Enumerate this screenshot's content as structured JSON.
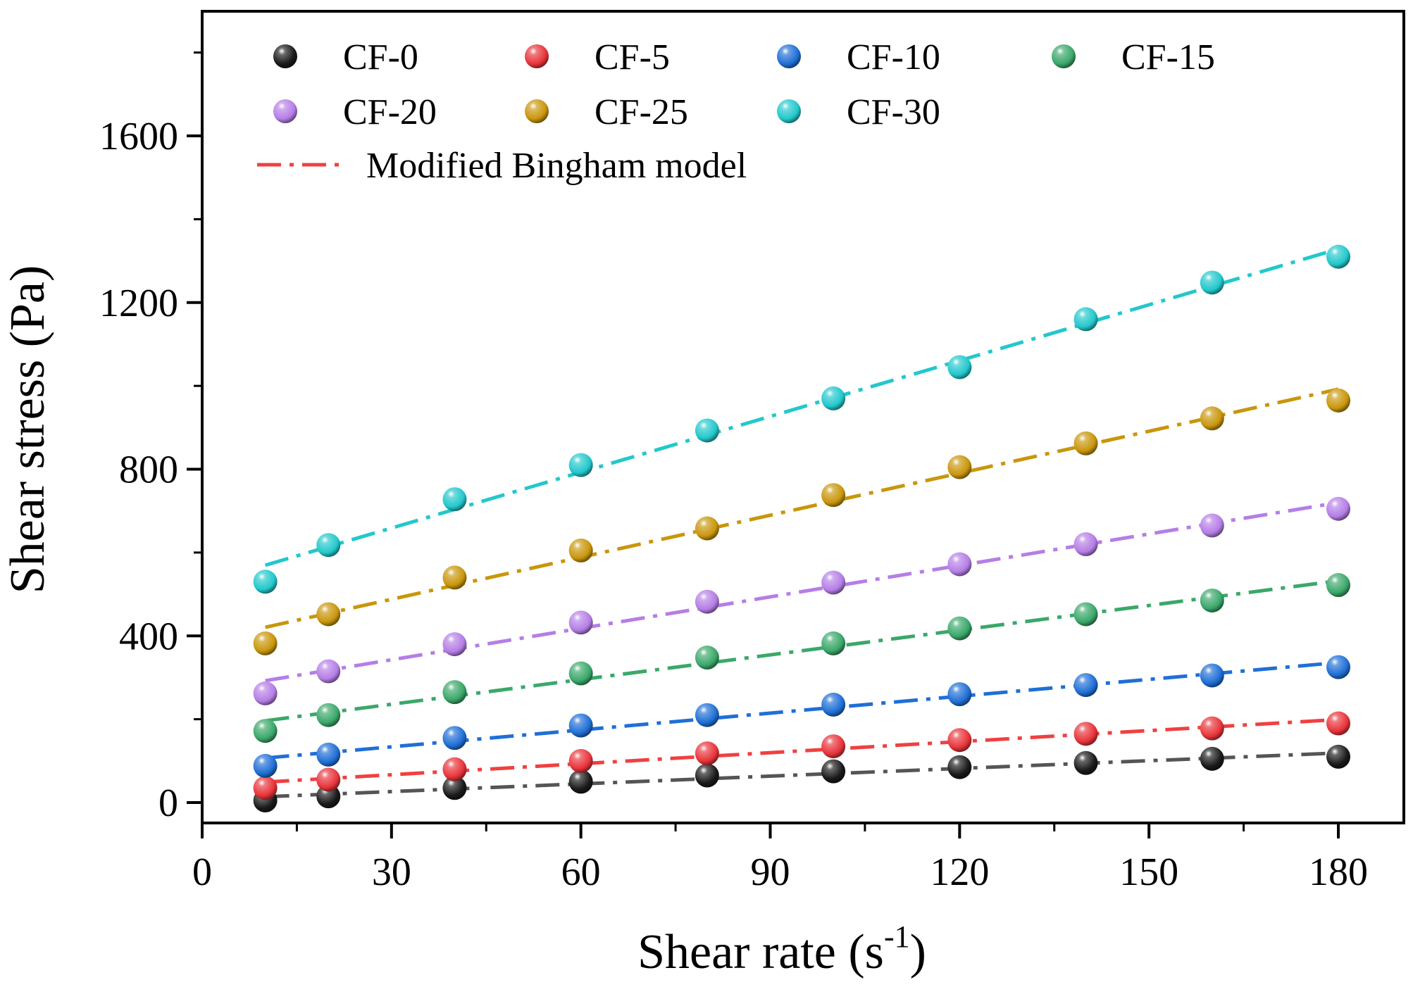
{
  "chart_data": {
    "type": "scatter",
    "xlabel": "Shear rate (s",
    "xlabel_sup": "-1",
    "xlabel_close": ")",
    "ylabel": "Shear stress (Pa)",
    "xlim": [
      0,
      190
    ],
    "ylim": [
      -50,
      1900
    ],
    "xticks": [
      0,
      30,
      60,
      90,
      120,
      150,
      180
    ],
    "yticks": [
      0,
      400,
      800,
      1200,
      1600
    ],
    "x": [
      10,
      20,
      40,
      60,
      80,
      100,
      120,
      140,
      160,
      180
    ],
    "series": [
      {
        "name": "CF-0",
        "color": "#1a1a1a",
        "line_color": "#555555",
        "values": [
          5,
          15,
          35,
          50,
          65,
          75,
          85,
          95,
          105,
          110
        ]
      },
      {
        "name": "CF-5",
        "color": "#e8343a",
        "line_color": "#f04040",
        "values": [
          35,
          55,
          80,
          100,
          118,
          135,
          150,
          165,
          178,
          190
        ]
      },
      {
        "name": "CF-10",
        "color": "#1f6fd6",
        "line_color": "#1f6fd6",
        "values": [
          88,
          115,
          155,
          185,
          210,
          235,
          260,
          282,
          305,
          325
        ]
      },
      {
        "name": "CF-15",
        "color": "#3aa86a",
        "line_color": "#3aa86a",
        "values": [
          172,
          210,
          265,
          310,
          348,
          382,
          418,
          452,
          485,
          522
        ]
      },
      {
        "name": "CF-20",
        "color": "#b57ee6",
        "line_color": "#b57ee6",
        "values": [
          262,
          315,
          380,
          432,
          482,
          528,
          572,
          620,
          665,
          705
        ]
      },
      {
        "name": "CF-25",
        "color": "#c9960c",
        "line_color": "#c9960c",
        "values": [
          382,
          452,
          540,
          605,
          658,
          738,
          805,
          862,
          922,
          965
        ]
      },
      {
        "name": "CF-30",
        "color": "#22c8cc",
        "line_color": "#22c8cc",
        "values": [
          530,
          618,
          728,
          810,
          893,
          970,
          1045,
          1160,
          1248,
          1310
        ]
      }
    ],
    "legend": {
      "placement": "top-left",
      "model_label": "Modified Bingham model",
      "model_color": "#f04040"
    },
    "grid": false
  }
}
